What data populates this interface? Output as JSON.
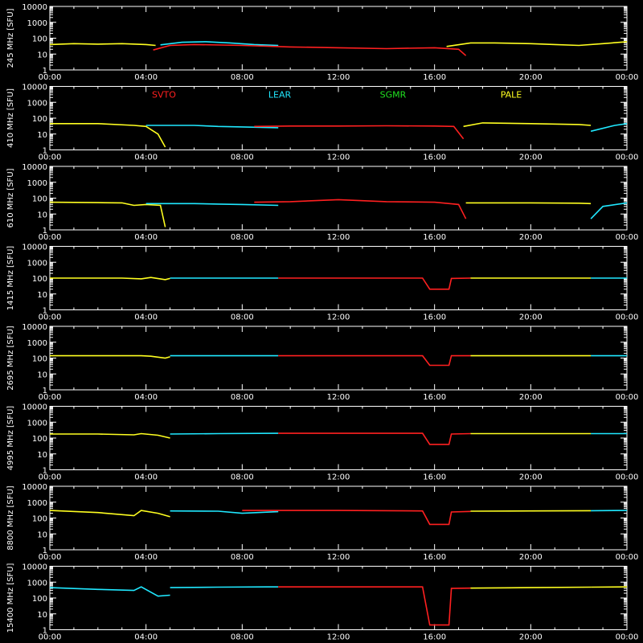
{
  "chart_data": {
    "type": "line",
    "xlim": [
      "00:00",
      "24:00"
    ],
    "x_tick_labels": [
      "00:00",
      "04:00",
      "08:00",
      "12:00",
      "16:00",
      "20:00",
      "00:00"
    ],
    "y_scale": "log",
    "ylim": [
      1,
      10000
    ],
    "y_tick_labels": [
      "1",
      "10",
      "100",
      "1000",
      "10000"
    ],
    "y_unit": "[SFU]",
    "legend": {
      "placement": "top",
      "stations": [
        {
          "name": "SVTO",
          "color": "#ff2020"
        },
        {
          "name": "LEAR",
          "color": "#20e8ff"
        },
        {
          "name": "SGMR",
          "color": "#20e020"
        },
        {
          "name": "PALE",
          "color": "#ffff20"
        }
      ]
    },
    "panels": [
      {
        "frequency": "245 MHz",
        "series": [
          {
            "station": "PALE",
            "points": [
              [
                0,
                40
              ],
              [
                1,
                45
              ],
              [
                2,
                42
              ],
              [
                3,
                45
              ],
              [
                4,
                40
              ],
              [
                4.4,
                35
              ]
            ]
          },
          {
            "station": "LEAR",
            "points": [
              [
                4.6,
                38
              ],
              [
                5.5,
                55
              ],
              [
                6.5,
                60
              ],
              [
                7.5,
                50
              ],
              [
                8.5,
                40
              ],
              [
                9.5,
                35
              ]
            ]
          },
          {
            "station": "SVTO",
            "points": [
              [
                4.3,
                18
              ],
              [
                5,
                35
              ],
              [
                6,
                40
              ],
              [
                8,
                35
              ],
              [
                10,
                28
              ],
              [
                12,
                25
              ],
              [
                14,
                22
              ],
              [
                16,
                25
              ],
              [
                17,
                20
              ],
              [
                17.3,
                8
              ]
            ]
          },
          {
            "station": "PALE",
            "points": [
              [
                16.5,
                30
              ],
              [
                17.5,
                50
              ],
              [
                18.5,
                50
              ],
              [
                20,
                45
              ],
              [
                21,
                40
              ],
              [
                22,
                35
              ],
              [
                23,
                45
              ],
              [
                24,
                60
              ]
            ]
          }
        ]
      },
      {
        "frequency": "410 MHz",
        "series": [
          {
            "station": "PALE",
            "points": [
              [
                0,
                45
              ],
              [
                2,
                45
              ],
              [
                3.5,
                35
              ],
              [
                4,
                30
              ],
              [
                4.5,
                10
              ],
              [
                4.8,
                1.5
              ]
            ]
          },
          {
            "station": "LEAR",
            "points": [
              [
                4,
                35
              ],
              [
                5,
                35
              ],
              [
                6,
                35
              ],
              [
                7,
                30
              ],
              [
                8,
                28
              ],
              [
                9.5,
                25
              ]
            ]
          },
          {
            "station": "SVTO",
            "points": [
              [
                8.5,
                30
              ],
              [
                10,
                32
              ],
              [
                12,
                32
              ],
              [
                14,
                33
              ],
              [
                16,
                32
              ],
              [
                16.8,
                30
              ],
              [
                17.2,
                5
              ]
            ]
          },
          {
            "station": "PALE",
            "points": [
              [
                17.2,
                30
              ],
              [
                18,
                50
              ],
              [
                20,
                45
              ],
              [
                22,
                40
              ],
              [
                22.5,
                35
              ]
            ]
          },
          {
            "station": "LEAR",
            "points": [
              [
                22.5,
                15
              ],
              [
                23.5,
                35
              ],
              [
                24,
                45
              ]
            ]
          }
        ]
      },
      {
        "frequency": "610 MHz",
        "series": [
          {
            "station": "PALE",
            "points": [
              [
                0,
                55
              ],
              [
                2,
                52
              ],
              [
                3,
                50
              ],
              [
                3.5,
                35
              ],
              [
                4,
                40
              ],
              [
                4.6,
                35
              ],
              [
                4.8,
                1.5
              ]
            ]
          },
          {
            "station": "LEAR",
            "points": [
              [
                4,
                45
              ],
              [
                5,
                45
              ],
              [
                6,
                45
              ],
              [
                7,
                42
              ],
              [
                8,
                40
              ],
              [
                9.5,
                35
              ]
            ]
          },
          {
            "station": "SVTO",
            "points": [
              [
                8.5,
                55
              ],
              [
                10,
                60
              ],
              [
                12,
                80
              ],
              [
                14,
                60
              ],
              [
                16,
                55
              ],
              [
                17,
                40
              ],
              [
                17.3,
                5
              ]
            ]
          },
          {
            "station": "PALE",
            "points": [
              [
                17.3,
                50
              ],
              [
                20,
                50
              ],
              [
                22,
                48
              ],
              [
                22.5,
                45
              ]
            ]
          },
          {
            "station": "LEAR",
            "points": [
              [
                22.5,
                5
              ],
              [
                23,
                30
              ],
              [
                24,
                50
              ]
            ]
          }
        ]
      },
      {
        "frequency": "1415 MHz",
        "series": [
          {
            "station": "PALE",
            "points": [
              [
                0,
                100
              ],
              [
                3,
                100
              ],
              [
                3.8,
                90
              ],
              [
                4.2,
                110
              ],
              [
                4.8,
                80
              ],
              [
                5,
                95
              ]
            ]
          },
          {
            "station": "LEAR",
            "points": [
              [
                5,
                100
              ],
              [
                7,
                100
              ],
              [
                9.5,
                100
              ]
            ]
          },
          {
            "station": "SVTO",
            "points": [
              [
                9.5,
                100
              ],
              [
                12,
                100
              ],
              [
                15.5,
                100
              ],
              [
                15.8,
                20
              ],
              [
                16.6,
                20
              ],
              [
                16.7,
                95
              ],
              [
                17.5,
                100
              ]
            ]
          },
          {
            "station": "PALE",
            "points": [
              [
                17.5,
                100
              ],
              [
                20,
                100
              ],
              [
                22,
                100
              ],
              [
                22.5,
                100
              ]
            ]
          },
          {
            "station": "LEAR",
            "points": [
              [
                22.5,
                100
              ],
              [
                24,
                100
              ]
            ]
          }
        ]
      },
      {
        "frequency": "2695 MHz",
        "series": [
          {
            "station": "PALE",
            "points": [
              [
                0,
                140
              ],
              [
                3.8,
                140
              ],
              [
                4.2,
                130
              ],
              [
                4.8,
                100
              ],
              [
                5,
                120
              ]
            ]
          },
          {
            "station": "LEAR",
            "points": [
              [
                5,
                140
              ],
              [
                7,
                140
              ],
              [
                9.5,
                140
              ]
            ]
          },
          {
            "station": "SVTO",
            "points": [
              [
                9.5,
                140
              ],
              [
                12,
                140
              ],
              [
                15.5,
                140
              ],
              [
                15.8,
                35
              ],
              [
                16.6,
                35
              ],
              [
                16.7,
                140
              ],
              [
                17.5,
                140
              ]
            ]
          },
          {
            "station": "PALE",
            "points": [
              [
                17.5,
                140
              ],
              [
                22.5,
                140
              ]
            ]
          },
          {
            "station": "LEAR",
            "points": [
              [
                22.5,
                140
              ],
              [
                24,
                140
              ]
            ]
          }
        ]
      },
      {
        "frequency": "4995 MHz",
        "series": [
          {
            "station": "PALE",
            "points": [
              [
                0,
                180
              ],
              [
                2,
                180
              ],
              [
                3.5,
                160
              ],
              [
                3.8,
                190
              ],
              [
                4.5,
                150
              ],
              [
                5,
                100
              ]
            ]
          },
          {
            "station": "LEAR",
            "points": [
              [
                5,
                180
              ],
              [
                7,
                190
              ],
              [
                9.5,
                200
              ]
            ]
          },
          {
            "station": "SVTO",
            "points": [
              [
                9.5,
                200
              ],
              [
                12,
                200
              ],
              [
                15.5,
                200
              ],
              [
                15.8,
                40
              ],
              [
                16.6,
                40
              ],
              [
                16.7,
                180
              ],
              [
                17.5,
                190
              ]
            ]
          },
          {
            "station": "PALE",
            "points": [
              [
                17.5,
                190
              ],
              [
                22.5,
                190
              ]
            ]
          },
          {
            "station": "LEAR",
            "points": [
              [
                22.5,
                190
              ],
              [
                24,
                190
              ]
            ]
          }
        ]
      },
      {
        "frequency": "8800 MHz",
        "series": [
          {
            "station": "PALE",
            "points": [
              [
                0,
                300
              ],
              [
                2,
                220
              ],
              [
                3.5,
                140
              ],
              [
                3.8,
                300
              ],
              [
                4.5,
                200
              ],
              [
                5,
                120
              ]
            ]
          },
          {
            "station": "LEAR",
            "points": [
              [
                5,
                280
              ],
              [
                7,
                270
              ],
              [
                8,
                200
              ],
              [
                9.5,
                250
              ]
            ]
          },
          {
            "station": "SVTO",
            "points": [
              [
                8,
                300
              ],
              [
                9.5,
                300
              ],
              [
                12,
                300
              ],
              [
                15.5,
                280
              ],
              [
                15.8,
                40
              ],
              [
                16.6,
                40
              ],
              [
                16.7,
                240
              ],
              [
                17.5,
                260
              ]
            ]
          },
          {
            "station": "PALE",
            "points": [
              [
                17.5,
                270
              ],
              [
                20,
                280
              ],
              [
                22.5,
                290
              ]
            ]
          },
          {
            "station": "LEAR",
            "points": [
              [
                22.5,
                290
              ],
              [
                24,
                300
              ]
            ]
          }
        ]
      },
      {
        "frequency": "15400 MHz",
        "series": [
          {
            "station": "LEAR",
            "points": [
              [
                0,
                450
              ],
              [
                2,
                350
              ],
              [
                3.5,
                300
              ],
              [
                3.8,
                500
              ],
              [
                4.5,
                130
              ],
              [
                5,
                150
              ]
            ]
          },
          {
            "station": "LEAR",
            "points": [
              [
                5,
                450
              ],
              [
                7,
                480
              ],
              [
                9,
                500
              ],
              [
                9.5,
                500
              ]
            ]
          },
          {
            "station": "SVTO",
            "points": [
              [
                9.5,
                500
              ],
              [
                12,
                500
              ],
              [
                15.5,
                500
              ],
              [
                15.8,
                2
              ],
              [
                16.6,
                2
              ],
              [
                16.7,
                400
              ],
              [
                17.5,
                420
              ]
            ]
          },
          {
            "station": "PALE",
            "points": [
              [
                17.5,
                420
              ],
              [
                20,
                450
              ],
              [
                22.5,
                480
              ]
            ]
          },
          {
            "station": "PALE",
            "points": [
              [
                22.5,
                480
              ],
              [
                24,
                500
              ]
            ]
          }
        ]
      }
    ]
  }
}
